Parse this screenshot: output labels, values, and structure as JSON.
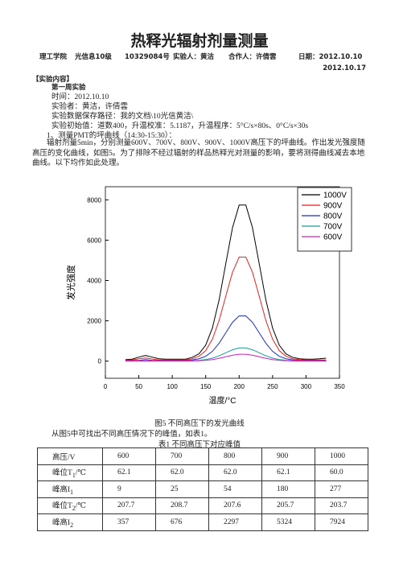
{
  "header": {
    "title": "热释光辐射剂量测量",
    "info": [
      "理工学院",
      "光信息10级",
      "10329084号",
      "实验人：黄洁",
      "合作人：许倩雲",
      "日期：2012.10.10"
    ],
    "date2": "2012.10.17"
  },
  "content": {
    "section": "【实验内容】",
    "week": "第一周实验",
    "lines": [
      "时间：2012.10.10",
      "实验者：黄洁，许倩雲",
      "实验数据保存路径：我的文档\\10光信黄洁\\",
      "实验初始值：道数400，升温校准：5.1187，升温程序：5°C/s×80s、0°C/s×30s",
      "1、测量PMT的坪曲线（14:30-15:30）："
    ],
    "paragraph": "辐射剂量5min，分别测量600V、700V、800V、900V、1000V高压下的坪曲线。作出发光强度随高压的变化曲线，如图5。为了排除不经过辐射的样品热释光对测量的影响，要将测得曲线减去本地曲线。以下均作如此处理。"
  },
  "chart_data": {
    "type": "line",
    "x_label": "温度/°C",
    "y_label": "发光强度",
    "x": [
      30,
      40,
      50,
      60,
      70,
      80,
      90,
      100,
      110,
      120,
      130,
      140,
      150,
      160,
      170,
      180,
      190,
      200,
      210,
      220,
      230,
      240,
      250,
      260,
      270,
      280,
      290,
      300,
      310,
      320,
      330
    ],
    "series": [
      {
        "name": "1000V",
        "color": "#000000",
        "values": [
          80,
          100,
          200,
          280,
          200,
          120,
          100,
          100,
          100,
          100,
          190,
          365,
          794,
          1640,
          3030,
          4830,
          6610,
          7740,
          7740,
          6610,
          4830,
          3030,
          1640,
          790,
          360,
          190,
          120,
          100,
          100,
          120,
          150
        ]
      },
      {
        "name": "900V",
        "color": "#e8231e",
        "values": [
          60,
          60,
          120,
          160,
          110,
          60,
          60,
          60,
          60,
          60,
          120,
          240,
          520,
          1090,
          2010,
          3220,
          4400,
          5160,
          5160,
          4400,
          3220,
          2010,
          1090,
          520,
          240,
          120,
          80,
          60,
          60,
          60,
          60
        ]
      },
      {
        "name": "800V",
        "color": "#1f2fbf",
        "values": [
          40,
          40,
          40,
          80,
          40,
          40,
          40,
          40,
          40,
          40,
          65,
          117,
          240,
          485,
          884,
          1406,
          1919,
          2245,
          2245,
          1919,
          1406,
          884,
          485,
          240,
          117,
          65,
          40,
          40,
          40,
          40,
          40
        ]
      },
      {
        "name": "700V",
        "color": "#1a9a9a",
        "values": [
          20,
          20,
          20,
          20,
          20,
          20,
          20,
          20,
          20,
          20,
          27,
          42,
          78,
          149,
          264,
          414,
          563,
          657,
          657,
          563,
          414,
          264,
          149,
          78,
          42,
          27,
          20,
          20,
          20,
          20,
          20
        ]
      },
      {
        "name": "600V",
        "color": "#d020c8",
        "values": [
          10,
          10,
          10,
          10,
          10,
          10,
          10,
          10,
          10,
          10,
          14,
          22,
          40,
          77,
          138,
          216,
          294,
          343,
          343,
          294,
          216,
          138,
          77,
          40,
          22,
          14,
          10,
          10,
          10,
          10,
          10
        ]
      }
    ],
    "xlim": [
      0,
      350
    ],
    "xticks": [
      0,
      50,
      100,
      150,
      200,
      250,
      300,
      350
    ],
    "ylim": [
      -850,
      8650
    ],
    "yticks": [
      0,
      2000,
      4000,
      6000,
      8000
    ],
    "legend": "upper right"
  },
  "caption": "图5 不同高压下的发光曲线",
  "intro": "从图5中可找出不同高压情况下的峰值，如表1。",
  "table": {
    "title": "表1 不同高压下对应峰值",
    "rows": [
      [
        {
          "text": "高压/V"
        },
        "600",
        "700",
        "800",
        "900",
        "1000"
      ],
      [
        {
          "text": "峰位T",
          "sub": "1",
          "unit": "/℃"
        },
        "62.1",
        "62.0",
        "62.0",
        "62.1",
        "60.0"
      ],
      [
        {
          "text": "峰高I",
          "sub": "1"
        },
        "9",
        "25",
        "54",
        "180",
        "277"
      ],
      [
        {
          "text": "峰位T",
          "sub": "2",
          "unit": "/℃"
        },
        "207.7",
        "208.7",
        "207.6",
        "205.7",
        "203.7"
      ],
      [
        {
          "text": "峰高I",
          "sub": "2"
        },
        "357",
        "676",
        "2297",
        "5324",
        "7924"
      ]
    ]
  }
}
